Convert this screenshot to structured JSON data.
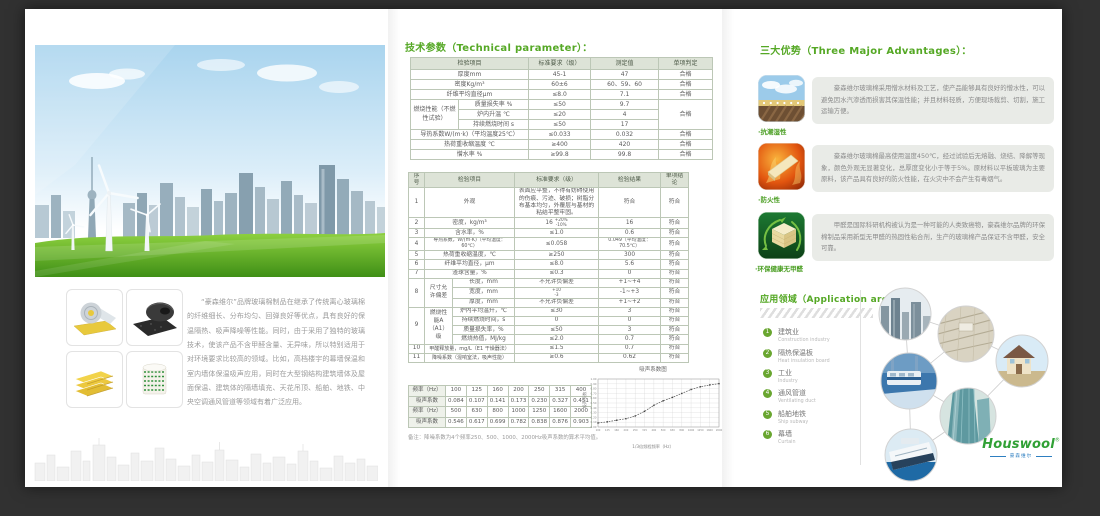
{
  "colors": {
    "background": "#313131",
    "page": "#ffffff",
    "accent_green": "#55a825",
    "table_header": "#dde3d7",
    "logo_green": "#31a136",
    "logo_blue": "#2e7fc1"
  },
  "icons": {
    "advantage_1": "moisture-resistance-icon",
    "advantage_2": "fire-resistance-icon",
    "advantage_3": "eco-no-formaldehyde-icon",
    "hero": "eco-city-wind-turbines-photo",
    "products": [
      "glasswool-foil-roll-photo",
      "black-rubber-roll-photo",
      "glasswool-boards-photo",
      "glasswool-coil-photo"
    ]
  },
  "left": {
    "intro": "“豪森维尔”品牌玻璃棉制品在继承了传统离心玻璃棉的纤维细长、分布均匀、回弹良好等优点，具有良好的保温隔热、吸声降噪等性能。同时，由于采用了独特的玻璃技术，使该产品不含甲醛含量、无异味，所以特别适用于对环境要求比较高的领域。比如，高档楼宇的幕墙保温和室内墙体保温吸声应用，同时在大型钢结构建筑墙体及屋面保温、建筑体的隔墙填充、天花吊顶、船舶、地铁、中央空调通风管道等领域有着广泛应用。"
  },
  "tech": {
    "title": "技术参数（Technical parameter）：",
    "t1": {
      "h": [
        "检验项目",
        "标准要求（级）",
        "测定值",
        "单项判定"
      ],
      "r0": [
        "厚度mm",
        "45-1",
        "47",
        "合格"
      ],
      "r1": [
        "密度Kg/m³",
        "60±6",
        "60、59、60",
        "合格"
      ],
      "r2": [
        "纤维平均直径μm",
        "≤8.0",
        "7.1",
        "合格"
      ],
      "burn": "燃烧性能（不燃性试验）",
      "r3": [
        "质量损失率 %",
        "≤50",
        "9.7",
        "合格"
      ],
      "r4": [
        "炉内升温 ℃",
        "≤20",
        "4"
      ],
      "r5": [
        "持续燃烧时间 s",
        "≤50",
        "17"
      ],
      "r6": [
        "导热系数W/(m·k)（平均温度25℃）",
        "≤0.033",
        "0.032",
        "合格"
      ],
      "r7": [
        "热荷重收缩温度 ℃",
        "≥400",
        "420",
        "合格"
      ],
      "r8": [
        "憎水率 %",
        "≥99.8",
        "99.8",
        "合格"
      ]
    },
    "t2": {
      "h": [
        "序号",
        "检验项目",
        "标准要求（级）",
        "检验结果",
        "单项结论"
      ],
      "r1": [
        "1",
        "外观",
        "表面应平整，不得有妨碍使用的伤痕、污迹、破损；树脂分布基本均匀，外覆层与基材的粘结平整牢固。",
        "符合",
        "符合"
      ],
      "r2": [
        "2",
        "密度，kg/m³",
        "16",
        "+20%",
        "-10%",
        "16",
        "符合"
      ],
      "r3": [
        "3",
        "含水率，%",
        "≤1.0",
        "0.6",
        "符合"
      ],
      "r4": [
        "4",
        "导热系数，W/(m·K)（平均温度：60℃）",
        "≤0.058",
        "0.049（平均温度：70.5℃）",
        "符合"
      ],
      "r5": [
        "5",
        "热荷重收缩温度，℃",
        "≥250",
        "300",
        "符合"
      ],
      "r6": [
        "6",
        "纤维平均直径，μm",
        "≤8.0",
        "5.6",
        "符合"
      ],
      "r7": [
        "7",
        "渣球含量，%",
        "≤0.3",
        "0",
        "符合"
      ],
      "g8": [
        "8",
        "尺寸允许偏差"
      ],
      "r8a": [
        "长度，mm",
        "不允许负偏差",
        "+1~+4",
        "符合"
      ],
      "r8b": [
        "宽度，mm",
        "+10",
        "-3",
        "-1~+3",
        "符合"
      ],
      "r8c": [
        "厚度，mm",
        "不允许负偏差",
        "+1~+2",
        "符合"
      ],
      "g9": [
        "9",
        "燃烧性能A（A1）级"
      ],
      "r9a": [
        "炉内平均温升，℃",
        "≤30",
        "3",
        "符合"
      ],
      "r9b": [
        "持续燃烧时间，s",
        "0",
        "0",
        "符合"
      ],
      "r9c": [
        "质量损失率，%",
        "≤50",
        "3",
        "符合"
      ],
      "r9d": [
        "燃烧热值，MJ/kg",
        "≤2.0",
        "0.7",
        "符合"
      ],
      "r10": [
        "10",
        "甲醛释放量，mg/L（E1 干燥器法）",
        "≤1.5",
        "0.7",
        "符合"
      ],
      "r11": [
        "11",
        "降噪系数（混响室法，吸声性能）",
        "≥0.6",
        "0.62",
        "符合"
      ]
    },
    "freq": {
      "r0": [
        "频率（Hz）",
        "100",
        "125",
        "160",
        "200",
        "250",
        "315",
        "400"
      ],
      "r1": [
        "吸声系数",
        "0.084",
        "0.107",
        "0.141",
        "0.173",
        "0.230",
        "0.327",
        "0.451"
      ],
      "r2": [
        "频率（Hz）",
        "500",
        "630",
        "800",
        "1000",
        "1250",
        "1600",
        "2000"
      ],
      "r3": [
        "吸声系数",
        "0.546",
        "0.617",
        "0.699",
        "0.782",
        "0.838",
        "0.876",
        "0.903"
      ]
    },
    "remark": "备注：降噪系数为4个频率250、500、1000、2000Hz吸声系数的算术平均值。"
  },
  "chart_data": {
    "type": "line",
    "title": "吸声系数图",
    "xlabel": "1/3倍频程频率（Hz）",
    "ylabel": "吸声系数",
    "x": [
      100,
      125,
      160,
      200,
      250,
      315,
      400,
      500,
      630,
      800,
      1000,
      1250,
      1600,
      2000
    ],
    "y": [
      0.084,
      0.107,
      0.141,
      0.173,
      0.23,
      0.327,
      0.451,
      0.546,
      0.617,
      0.699,
      0.782,
      0.838,
      0.876,
      0.903
    ],
    "ylim": [
      0,
      1.0
    ],
    "grid": true,
    "legend": false
  },
  "advantages": {
    "title": "三大优势（Three Major Advantages）：",
    "items": [
      {
        "label": "·抗潮湿性",
        "text": "豪森维尔玻璃棉采用憎水材料及工艺，使产品能够具有良好的憎水性，可以避免因水汽渗透而损害其保温性能；并且材料轻质，方便现场裁剪、切割，施工运输方便。"
      },
      {
        "label": "·防火性",
        "text": "豪森维尔玻璃棉最高使用温度450℃，经过试验后无熔融、烧结、降解等现象，颜色外观无显著变化，总厚度变化小于等于5%。原材料以平板玻璃为主要原料，该产品具有良好的防火性能，在火灾中不会产生有毒烟气。"
      },
      {
        "label": "·环保健康无甲醛",
        "text": "甲醛是国际科研机构被认为是一种可能的人类致癌物，豪森维尔品牌的环保棉制品采用新型无甲醛的热固性粘合剂，生产的玻璃棉产品保证不含甲醛，安全可靠。"
      }
    ]
  },
  "application": {
    "title": "应用领域（Application area）：",
    "items": [
      {
        "n": "1",
        "zh": "建筑业",
        "en": "Construction industry"
      },
      {
        "n": "2",
        "zh": "隔热保温板",
        "en": "Heat insulation board"
      },
      {
        "n": "3",
        "zh": "工业",
        "en": "Industry"
      },
      {
        "n": "4",
        "zh": "通风管道",
        "en": "Ventilating duct"
      },
      {
        "n": "5",
        "zh": "船舶地铁",
        "en": "Ship subway"
      },
      {
        "n": "6",
        "zh": "幕墙",
        "en": "Curtain"
      }
    ]
  },
  "logo": {
    "name": "Houswool",
    "reg": "®",
    "sub": "豪森维尔"
  }
}
